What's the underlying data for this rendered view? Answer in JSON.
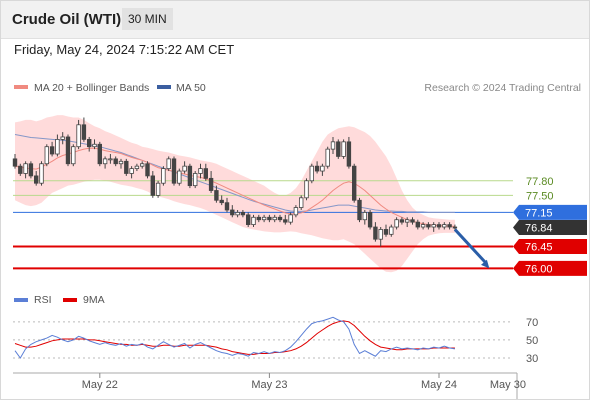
{
  "header": {
    "title": "Crude Oil (WTI)",
    "interval": "30 MIN",
    "timestamp": "Friday, May 24, 2024 7:15:22 AM CET"
  },
  "colors": {
    "bollinger_fill": "#ffd5d5",
    "ma20_line": "#f08a80",
    "ma50_line": "#8597c8",
    "candle": "#444444",
    "resistance": "#b8d98c",
    "pivot": "#2f6fde",
    "current": "#333333",
    "support": "#e00000",
    "arrow": "#2a5ea8",
    "rsi": "#5b7fd6",
    "rsi_ma": "#e00000"
  },
  "chart_data": [
    {
      "type": "line",
      "name": "price-chart",
      "legend": [
        {
          "label": "MA 20 + Bollinger Bands",
          "color": "#f08a80"
        },
        {
          "label": "MA 50",
          "color": "#3b5ea0"
        }
      ],
      "credit": "Research © 2024 Trading Central",
      "x_ticks": [
        {
          "label": "May 22",
          "index": 16
        },
        {
          "label": "May 23",
          "index": 48
        },
        {
          "label": "May 24",
          "index": 80
        },
        {
          "label": "May 30",
          "index": 93
        }
      ],
      "ylim": [
        75.7,
        79.48
      ],
      "candles": [
        [
          78.25,
          78.35,
          78.05,
          78.1
        ],
        [
          78.1,
          78.15,
          77.9,
          77.95
        ],
        [
          77.95,
          78.2,
          77.85,
          78.15
        ],
        [
          78.15,
          78.2,
          77.85,
          77.9
        ],
        [
          77.9,
          78.0,
          77.7,
          77.75
        ],
        [
          77.75,
          78.2,
          77.7,
          78.15
        ],
        [
          78.15,
          78.55,
          78.1,
          78.5
        ],
        [
          78.5,
          78.6,
          78.3,
          78.35
        ],
        [
          78.35,
          78.75,
          78.3,
          78.65
        ],
        [
          78.65,
          78.8,
          78.55,
          78.7
        ],
        [
          78.7,
          78.75,
          78.1,
          78.15
        ],
        [
          78.15,
          78.55,
          78.1,
          78.5
        ],
        [
          78.5,
          79.05,
          78.45,
          78.95
        ],
        [
          78.95,
          79.1,
          78.6,
          78.65
        ],
        [
          78.65,
          78.7,
          78.4,
          78.5
        ],
        [
          78.5,
          78.65,
          78.45,
          78.55
        ],
        [
          78.55,
          78.6,
          78.1,
          78.15
        ],
        [
          78.15,
          78.3,
          78.05,
          78.25
        ],
        [
          78.25,
          78.35,
          78.15,
          78.25
        ],
        [
          78.25,
          78.3,
          78.1,
          78.15
        ],
        [
          78.15,
          78.25,
          78.05,
          78.2
        ],
        [
          78.2,
          78.25,
          77.9,
          77.95
        ],
        [
          77.95,
          78.1,
          77.85,
          78.05
        ],
        [
          78.05,
          78.15,
          78.0,
          78.1
        ],
        [
          78.1,
          78.2,
          78.05,
          78.15
        ],
        [
          78.15,
          78.2,
          77.85,
          77.9
        ],
        [
          77.9,
          78.0,
          77.45,
          77.5
        ],
        [
          77.5,
          77.8,
          77.45,
          77.75
        ],
        [
          77.75,
          78.1,
          77.7,
          78.05
        ],
        [
          78.05,
          78.3,
          78.0,
          78.25
        ],
        [
          78.25,
          78.3,
          77.7,
          77.75
        ],
        [
          77.75,
          78.05,
          77.7,
          78.0
        ],
        [
          78.0,
          78.2,
          77.95,
          78.1
        ],
        [
          78.1,
          78.15,
          77.65,
          77.7
        ],
        [
          77.7,
          78.0,
          77.65,
          77.95
        ],
        [
          77.95,
          78.15,
          77.85,
          78.05
        ],
        [
          78.05,
          78.15,
          77.8,
          77.85
        ],
        [
          77.85,
          78.0,
          77.55,
          77.6
        ],
        [
          77.6,
          77.7,
          77.35,
          77.4
        ],
        [
          77.4,
          77.5,
          77.3,
          77.35
        ],
        [
          77.35,
          77.45,
          77.15,
          77.2
        ],
        [
          77.2,
          77.3,
          77.05,
          77.1
        ],
        [
          77.1,
          77.2,
          77.05,
          77.15
        ],
        [
          77.15,
          77.2,
          77.05,
          77.1
        ],
        [
          77.1,
          77.15,
          76.85,
          76.9
        ],
        [
          76.9,
          77.1,
          76.85,
          77.05
        ],
        [
          77.05,
          77.1,
          76.95,
          77.0
        ],
        [
          77.0,
          77.1,
          76.95,
          77.05
        ],
        [
          77.05,
          77.1,
          76.95,
          77.0
        ],
        [
          77.0,
          77.1,
          76.95,
          77.05
        ],
        [
          77.05,
          77.1,
          76.95,
          77.0
        ],
        [
          77.0,
          77.1,
          76.9,
          76.95
        ],
        [
          76.95,
          77.15,
          76.9,
          77.1
        ],
        [
          77.1,
          77.3,
          77.05,
          77.25
        ],
        [
          77.25,
          77.5,
          77.2,
          77.45
        ],
        [
          77.45,
          77.85,
          77.4,
          77.8
        ],
        [
          77.8,
          78.15,
          77.75,
          78.1
        ],
        [
          78.1,
          78.2,
          77.95,
          78.0
        ],
        [
          78.0,
          78.15,
          77.9,
          78.1
        ],
        [
          78.1,
          78.5,
          78.05,
          78.45
        ],
        [
          78.45,
          78.7,
          78.35,
          78.6
        ],
        [
          78.6,
          78.65,
          78.25,
          78.3
        ],
        [
          78.3,
          78.65,
          78.25,
          78.6
        ],
        [
          78.6,
          78.7,
          78.05,
          78.1
        ],
        [
          78.1,
          78.15,
          77.35,
          77.4
        ],
        [
          77.4,
          77.45,
          76.95,
          77.0
        ],
        [
          77.0,
          77.2,
          76.9,
          77.15
        ],
        [
          77.15,
          77.2,
          76.8,
          76.85
        ],
        [
          76.85,
          76.95,
          76.55,
          76.6
        ],
        [
          76.6,
          76.85,
          76.45,
          76.8
        ],
        [
          76.8,
          76.9,
          76.65,
          76.7
        ],
        [
          76.7,
          76.9,
          76.65,
          76.85
        ],
        [
          76.85,
          77.05,
          76.8,
          77.0
        ],
        [
          77.0,
          77.05,
          76.9,
          76.95
        ],
        [
          76.95,
          77.05,
          76.85,
          77.0
        ],
        [
          77.0,
          77.05,
          76.9,
          76.95
        ],
        [
          76.95,
          77.0,
          76.8,
          76.85
        ],
        [
          76.85,
          76.95,
          76.8,
          76.9
        ],
        [
          76.9,
          76.95,
          76.8,
          76.85
        ],
        [
          76.85,
          76.95,
          76.75,
          76.9
        ],
        [
          76.9,
          76.95,
          76.8,
          76.85
        ],
        [
          76.85,
          76.95,
          76.8,
          76.9
        ],
        [
          76.9,
          76.95,
          76.8,
          76.85
        ],
        [
          76.85,
          76.9,
          76.8,
          76.84
        ]
      ],
      "ma20": [
        78.1,
        78.08,
        78.06,
        78.05,
        78.04,
        78.08,
        78.14,
        78.2,
        78.27,
        78.32,
        78.35,
        78.38,
        78.42,
        78.45,
        78.47,
        78.47,
        78.45,
        78.42,
        78.4,
        78.38,
        78.36,
        78.32,
        78.28,
        78.25,
        78.22,
        78.18,
        78.12,
        78.07,
        78.04,
        78.02,
        77.99,
        77.96,
        77.94,
        77.91,
        77.89,
        77.87,
        77.84,
        77.8,
        77.75,
        77.7,
        77.65,
        77.6,
        77.55,
        77.5,
        77.45,
        77.4,
        77.35,
        77.3,
        77.26,
        77.22,
        77.18,
        77.14,
        77.12,
        77.12,
        77.14,
        77.18,
        77.25,
        77.32,
        77.4,
        77.5,
        77.6,
        77.68,
        77.75,
        77.78,
        77.75,
        77.68,
        77.6,
        77.5,
        77.4,
        77.3,
        77.22,
        77.15,
        77.1,
        77.05,
        77.0,
        76.97,
        76.94,
        76.92,
        76.9,
        76.89,
        76.88,
        76.87,
        76.87,
        76.86
      ],
      "bb_upper": [
        79.0,
        79.02,
        79.05,
        79.05,
        79.02,
        79.05,
        79.1,
        79.12,
        79.15,
        79.15,
        79.12,
        79.1,
        79.1,
        79.05,
        78.98,
        78.92,
        78.88,
        78.82,
        78.78,
        78.73,
        78.68,
        78.63,
        78.58,
        78.55,
        78.5,
        78.48,
        78.45,
        78.42,
        78.4,
        78.38,
        78.35,
        78.32,
        78.3,
        78.28,
        78.25,
        78.22,
        78.2,
        78.18,
        78.15,
        78.1,
        78.05,
        78.0,
        77.95,
        77.9,
        77.85,
        77.8,
        77.75,
        77.7,
        77.62,
        77.55,
        77.5,
        77.5,
        77.55,
        77.65,
        77.8,
        78.0,
        78.2,
        78.4,
        78.6,
        78.75,
        78.82,
        78.88,
        78.9,
        78.92,
        78.9,
        78.85,
        78.8,
        78.72,
        78.6,
        78.45,
        78.3,
        78.1,
        77.85,
        77.6,
        77.4,
        77.25,
        77.15,
        77.1,
        77.05,
        77.03,
        77.02,
        77.01,
        77.0,
        77.0
      ],
      "bb_lower": [
        77.4,
        77.35,
        77.3,
        77.28,
        77.3,
        77.35,
        77.45,
        77.55,
        77.6,
        77.65,
        77.7,
        77.72,
        77.75,
        77.78,
        77.8,
        77.82,
        77.82,
        77.8,
        77.78,
        77.75,
        77.72,
        77.7,
        77.68,
        77.65,
        77.62,
        77.58,
        77.52,
        77.48,
        77.45,
        77.42,
        77.38,
        77.35,
        77.32,
        77.3,
        77.27,
        77.24,
        77.2,
        77.15,
        77.1,
        77.05,
        77.0,
        76.95,
        76.9,
        76.85,
        76.82,
        76.8,
        76.78,
        76.76,
        76.75,
        76.74,
        76.74,
        76.75,
        76.76,
        76.75,
        76.72,
        76.7,
        76.68,
        76.65,
        76.62,
        76.6,
        76.58,
        76.58,
        76.6,
        76.55,
        76.5,
        76.4,
        76.3,
        76.2,
        76.1,
        76.0,
        75.93,
        75.92,
        75.95,
        76.05,
        76.2,
        76.35,
        76.5,
        76.6,
        76.67,
        76.7,
        76.72,
        76.73,
        76.73,
        76.73
      ],
      "ma50": [
        78.75,
        78.73,
        78.71,
        78.69,
        78.68,
        78.67,
        78.66,
        78.65,
        78.64,
        78.63,
        78.62,
        78.6,
        78.58,
        78.56,
        78.54,
        78.52,
        78.5,
        78.47,
        78.44,
        78.41,
        78.38,
        78.34,
        78.3,
        78.26,
        78.22,
        78.18,
        78.14,
        78.1,
        78.06,
        78.02,
        77.98,
        77.94,
        77.9,
        77.86,
        77.82,
        77.78,
        77.74,
        77.7,
        77.66,
        77.62,
        77.58,
        77.54,
        77.5,
        77.46,
        77.42,
        77.38,
        77.35,
        77.32,
        77.29,
        77.26,
        77.23,
        77.2,
        77.18,
        77.17,
        77.17,
        77.18,
        77.2,
        77.22,
        77.24,
        77.26,
        77.28,
        77.3,
        77.3,
        77.3,
        77.28,
        77.26,
        77.24,
        77.22,
        77.2,
        77.19,
        77.18,
        77.18,
        77.17,
        77.17,
        77.16,
        77.16,
        77.16,
        77.16,
        77.15,
        77.15,
        77.15,
        77.15,
        77.15,
        77.15
      ],
      "projection": {
        "from_index": 83,
        "from_value": 76.8,
        "to_index": 89.5,
        "to_value": 76.0
      },
      "levels": [
        {
          "label": "77.80",
          "value": 77.8,
          "role": "resistance"
        },
        {
          "label": "77.50",
          "value": 77.5,
          "role": "resistance"
        },
        {
          "label": "77.15",
          "value": 77.15,
          "role": "pivot"
        },
        {
          "label": "76.84",
          "value": 76.84,
          "role": "current"
        },
        {
          "label": "76.45",
          "value": 76.45,
          "role": "support"
        },
        {
          "label": "76.00",
          "value": 76.0,
          "role": "support"
        }
      ]
    },
    {
      "type": "line",
      "name": "rsi-panel",
      "legend": [
        {
          "label": "RSI",
          "color": "#5b7fd6"
        },
        {
          "label": "9MA",
          "color": "#e00000"
        }
      ],
      "ylim": [
        20,
        82
      ],
      "y_ticks": [
        {
          "label": "70",
          "value": 70
        },
        {
          "label": "50",
          "value": 50
        },
        {
          "label": "30",
          "value": 30
        }
      ],
      "rsi": [
        38,
        30,
        40,
        45,
        48,
        50,
        52,
        55,
        53,
        50,
        48,
        50,
        54,
        52,
        49,
        47,
        45,
        47,
        45,
        44,
        46,
        43,
        45,
        44,
        46,
        42,
        40,
        44,
        48,
        45,
        42,
        44,
        46,
        41,
        45,
        47,
        44,
        41,
        38,
        36,
        35,
        33,
        35,
        34,
        32,
        36,
        35,
        37,
        35,
        37,
        36,
        38,
        42,
        48,
        55,
        62,
        68,
        70,
        71,
        73,
        75,
        72,
        70,
        62,
        45,
        35,
        38,
        35,
        32,
        38,
        37,
        40,
        42,
        40,
        41,
        40,
        39,
        41,
        40,
        42,
        41,
        43,
        41,
        40
      ],
      "rsi_ma": [
        46,
        44,
        42,
        42,
        43,
        45,
        47,
        49,
        50,
        51,
        51,
        51,
        51,
        51,
        50,
        50,
        49,
        48,
        47,
        46,
        45,
        45,
        44,
        44,
        45,
        44,
        43,
        43,
        44,
        44,
        43,
        43,
        44,
        44,
        44,
        44,
        44,
        43,
        42,
        40,
        39,
        37,
        36,
        35,
        34,
        34,
        35,
        35,
        35,
        36,
        36,
        37,
        38,
        40,
        43,
        47,
        52,
        57,
        61,
        65,
        68,
        70,
        71,
        70,
        66,
        60,
        54,
        49,
        45,
        42,
        41,
        40,
        39,
        39,
        40,
        40,
        40,
        40,
        40,
        41,
        41,
        41,
        41,
        41
      ]
    }
  ]
}
